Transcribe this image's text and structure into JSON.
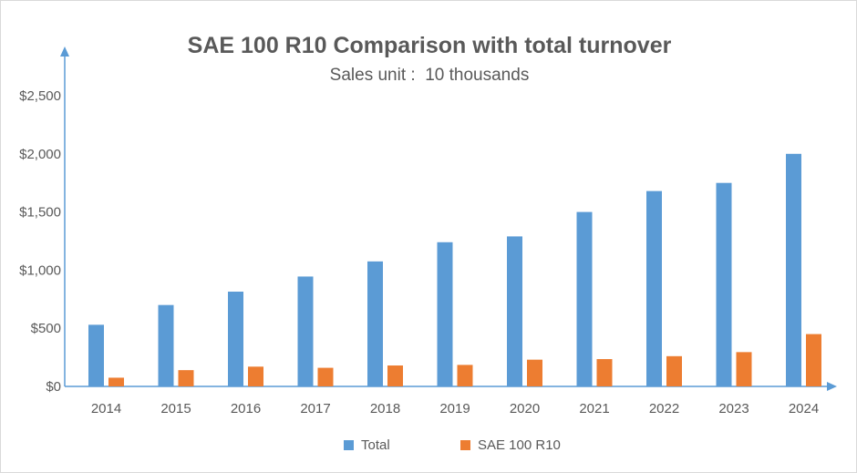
{
  "chart_data": {
    "type": "bar",
    "title": "SAE 100 R10 Comparison with total turnover",
    "subtitle": "Sales unit :  10 thousands",
    "categories": [
      "2014",
      "2015",
      "2016",
      "2017",
      "2018",
      "2019",
      "2020",
      "2021",
      "2022",
      "2023",
      "2024"
    ],
    "series": [
      {
        "name": "Total",
        "color": "#5b9bd5",
        "values": [
          530,
          700,
          815,
          945,
          1075,
          1240,
          1290,
          1500,
          1680,
          1750,
          2000
        ]
      },
      {
        "name": "SAE 100 R10",
        "color": "#ed7d31",
        "values": [
          75,
          140,
          170,
          160,
          180,
          185,
          230,
          235,
          260,
          295,
          450
        ]
      }
    ],
    "y_ticks": [
      0,
      500,
      1000,
      1500,
      2000,
      2500
    ],
    "y_tick_labels": [
      "$0",
      "$500",
      "$1,000",
      "$1,500",
      "$2,000",
      "$2,500"
    ],
    "ylim": [
      0,
      2500
    ],
    "xlabel": "",
    "ylabel": "",
    "grid": false,
    "legend_position": "bottom",
    "axis_color": "#5b9bd5"
  }
}
